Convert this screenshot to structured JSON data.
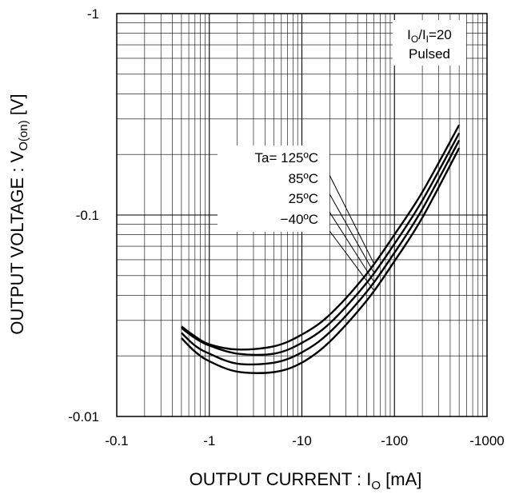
{
  "chart_data": {
    "type": "line",
    "x_scale": "log",
    "y_scale": "log",
    "xlim": [
      -0.1,
      -1000
    ],
    "ylim": [
      -0.01,
      -1
    ],
    "grid": true,
    "x_ticks": [
      "-0.1",
      "-1",
      "-10",
      "-100",
      "-1000"
    ],
    "y_ticks": [
      "-1",
      "-0.1",
      "-0.01"
    ],
    "xlabel": {
      "main": "OUTPUT CURRENT : I",
      "sub": "O",
      "tail": " [mA]"
    },
    "ylabel": {
      "main": "OUTPUT VOLTAGE : V",
      "sub": "O(on)",
      "tail": " [V]"
    },
    "condition": {
      "line1": {
        "a": "I",
        "a_sub": "O",
        "mid": "/I",
        "b_sub": "I",
        "tail": "=20"
      },
      "line2": "Pulsed"
    },
    "series": [
      {
        "name": "Ta= 125ºC",
        "x": [
          -0.5,
          -0.7,
          -1,
          -2,
          -5,
          -10,
          -20,
          -50,
          -100,
          -200,
          -500
        ],
        "y": [
          -0.028,
          -0.025,
          -0.0228,
          -0.0215,
          -0.0223,
          -0.0255,
          -0.032,
          -0.051,
          -0.08,
          -0.13,
          -0.28
        ]
      },
      {
        "name": "85ºC",
        "x": [
          -0.5,
          -0.7,
          -1,
          -2,
          -5,
          -10,
          -20,
          -50,
          -100,
          -200,
          -500
        ],
        "y": [
          -0.0275,
          -0.0245,
          -0.0225,
          -0.0205,
          -0.0205,
          -0.0232,
          -0.029,
          -0.046,
          -0.072,
          -0.118,
          -0.255
        ]
      },
      {
        "name": "25ºC",
        "x": [
          -0.5,
          -0.7,
          -1,
          -2,
          -5,
          -10,
          -20,
          -50,
          -100,
          -200,
          -500
        ],
        "y": [
          -0.026,
          -0.0225,
          -0.0205,
          -0.0183,
          -0.0185,
          -0.0208,
          -0.0262,
          -0.0415,
          -0.065,
          -0.107,
          -0.235
        ]
      },
      {
        "name": "−40ºC",
        "x": [
          -0.5,
          -0.7,
          -1,
          -2,
          -5,
          -10,
          -20,
          -50,
          -100,
          -200,
          -500
        ],
        "y": [
          -0.0245,
          -0.021,
          -0.0188,
          -0.0167,
          -0.0166,
          -0.0185,
          -0.0235,
          -0.0375,
          -0.059,
          -0.097,
          -0.215
        ]
      }
    ]
  }
}
